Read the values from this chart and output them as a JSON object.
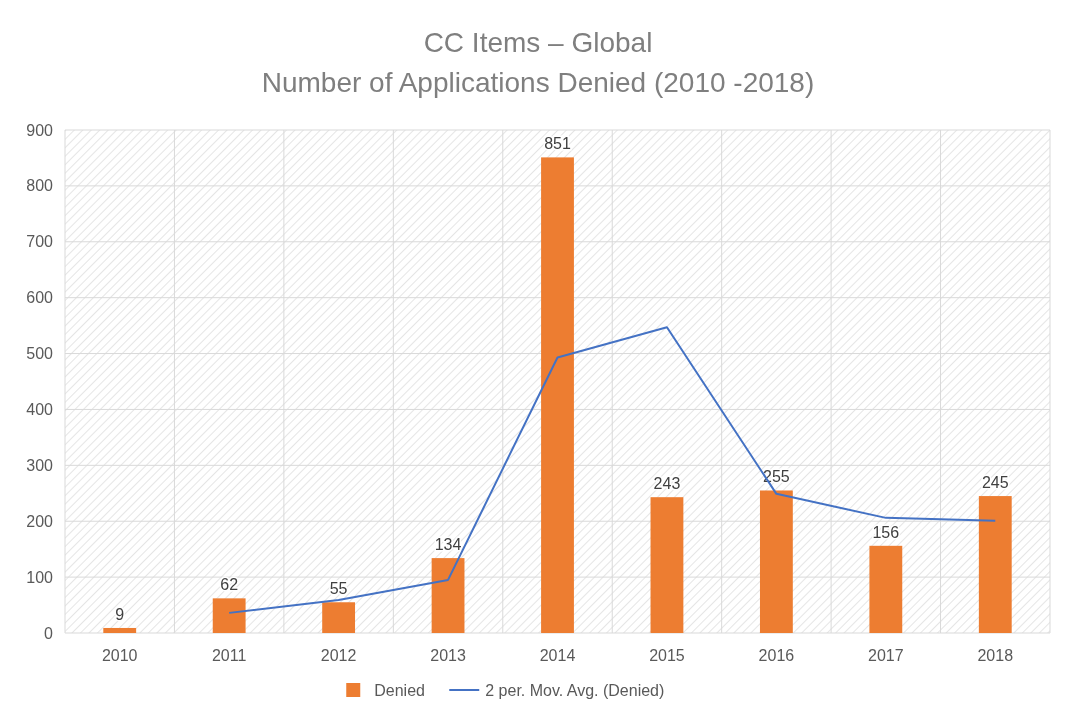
{
  "chart_data": {
    "type": "bar",
    "title": "CC Items – Global",
    "subtitle": "Number of Applications Denied (2010 -2018)",
    "categories": [
      "2010",
      "2011",
      "2012",
      "2013",
      "2014",
      "2015",
      "2016",
      "2017",
      "2018"
    ],
    "series": [
      {
        "name": "Denied",
        "color": "#ed7d31",
        "values": [
          9,
          62,
          55,
          134,
          851,
          243,
          255,
          156,
          245
        ],
        "value_labels": [
          "9",
          "62",
          "55",
          "134",
          "851",
          "243",
          "255",
          "156",
          "245"
        ]
      },
      {
        "name": "2 per. Mov. Avg. (Denied)",
        "type": "line",
        "color": "#4472c4",
        "values": [
          null,
          36,
          59,
          95,
          493,
          547,
          249,
          206,
          201
        ]
      }
    ],
    "ylim": [
      0,
      900
    ],
    "yticks": [
      0,
      100,
      200,
      300,
      400,
      500,
      600,
      700,
      800,
      900
    ],
    "grid": true,
    "legend": "bottom",
    "marker": "none",
    "line_style": "solid"
  }
}
